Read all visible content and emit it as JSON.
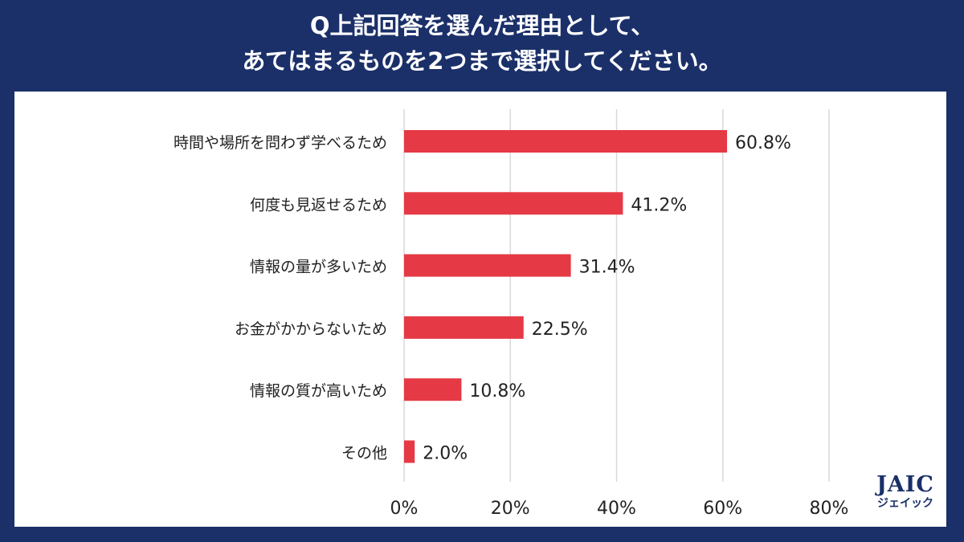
{
  "title_lines": [
    "Q上記回答を選んだ理由として、",
    "あてはまるものを2つまで選択してください。"
  ],
  "chart_data": {
    "type": "bar",
    "orientation": "horizontal",
    "categories": [
      "時間や場所を問わず学べるため",
      "何度も見返せるため",
      "情報の量が多いため",
      "お金がかからないため",
      "情報の質が高いため",
      "その他"
    ],
    "values": [
      60.8,
      41.2,
      31.4,
      22.5,
      10.8,
      2.0
    ],
    "data_labels": [
      "60.8%",
      "41.2%",
      "31.4%",
      "22.5%",
      "10.8%",
      "2.0%"
    ],
    "xlim": [
      0,
      80
    ],
    "x_ticks": [
      "0%",
      "20%",
      "40%",
      "60%",
      "80%"
    ],
    "grid": "vertical",
    "bar_color": "#e53a45"
  },
  "logo": {
    "main": "JAIC",
    "sub": "ジェイック"
  }
}
